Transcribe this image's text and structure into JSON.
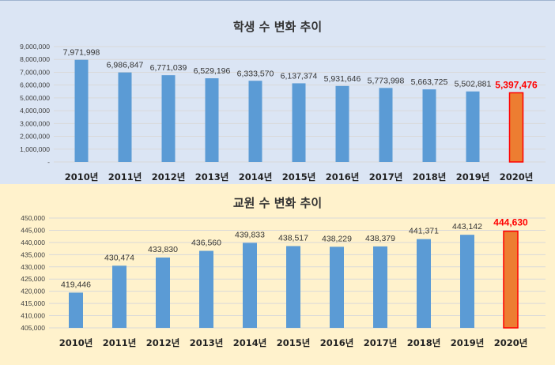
{
  "colors": {
    "bar": "#5b9bd5",
    "highlight_bar": "#ed7d31",
    "highlight_border": "#ff0000",
    "highlight_label": "#ff0000"
  },
  "chart_data": [
    {
      "type": "bar",
      "title": "학생 수 변화 추이",
      "categories": [
        "2010년",
        "2011년",
        "2012년",
        "2013년",
        "2014년",
        "2015년",
        "2016년",
        "2017년",
        "2018년",
        "2019년",
        "2020년"
      ],
      "values": [
        7971998,
        6986847,
        6771039,
        6529196,
        6333570,
        6137374,
        5931646,
        5773998,
        5663725,
        5502881,
        5397476
      ],
      "value_labels": [
        "7,971,998",
        "6,986,847",
        "6,771,039",
        "6,529,196",
        "6,333,570",
        "6,137,374",
        "5,931,646",
        "5,773,998",
        "5,663,725",
        "5,502,881",
        "5,397,476"
      ],
      "highlight_index": 10,
      "ylim": [
        0,
        9000000
      ],
      "yticks": [
        "-",
        "1,000,000",
        "2,000,000",
        "3,000,000",
        "4,000,000",
        "5,000,000",
        "6,000,000",
        "7,000,000",
        "8,000,000",
        "9,000,000"
      ],
      "grid": true
    },
    {
      "type": "bar",
      "title": "교원 수 변화 추이",
      "categories": [
        "2010년",
        "2011년",
        "2012년",
        "2013년",
        "2014년",
        "2015년",
        "2016년",
        "2017년",
        "2018년",
        "2019년",
        "2020년"
      ],
      "values": [
        419446,
        430474,
        433830,
        436560,
        439833,
        438517,
        438229,
        438379,
        441371,
        443142,
        444630
      ],
      "value_labels": [
        "419,446",
        "430,474",
        "433,830",
        "436,560",
        "439,833",
        "438,517",
        "438,229",
        "438,379",
        "441,371",
        "443,142",
        "444,630"
      ],
      "highlight_index": 10,
      "ylim": [
        405000,
        450000
      ],
      "yticks": [
        "405,000",
        "410,000",
        "415,000",
        "420,000",
        "425,000",
        "430,000",
        "435,000",
        "440,000",
        "445,000",
        "450,000"
      ],
      "grid": true
    }
  ]
}
